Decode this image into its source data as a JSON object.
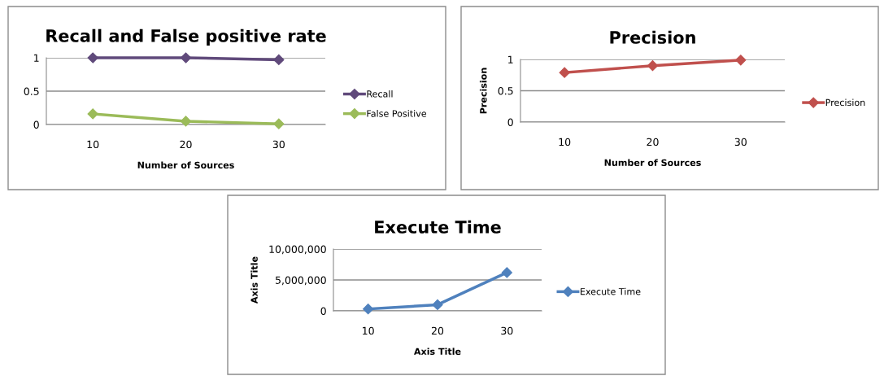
{
  "chart_data": [
    {
      "type": "line",
      "title": "Recall and False positive rate",
      "xlabel": "Number of Sources",
      "categories": [
        "10",
        "20",
        "30"
      ],
      "series": [
        {
          "name": "Recall",
          "color": "#604a7b",
          "values": [
            1,
            1,
            0.97
          ]
        },
        {
          "name": "False Positive",
          "color": "#9bbb59",
          "values": [
            0.16,
            0.05,
            0.01
          ]
        }
      ],
      "ylim": [
        0,
        1
      ],
      "yticks": [
        0,
        0.5,
        1
      ],
      "grid": "y",
      "legend": "right",
      "marker": "diamond"
    },
    {
      "type": "line",
      "title": "Precision",
      "xlabel": "Number of Sources",
      "ylabel": "Precision",
      "categories": [
        "10",
        "20",
        "30"
      ],
      "series": [
        {
          "name": "Precision",
          "color": "#c0504d",
          "values": [
            0.79,
            0.9,
            0.99
          ]
        }
      ],
      "ylim": [
        0,
        1
      ],
      "yticks": [
        0,
        0.5,
        1
      ],
      "grid": "y",
      "legend": "right",
      "marker": "diamond"
    },
    {
      "type": "line",
      "title": "Execute Time",
      "xlabel": "Axis Title",
      "ylabel": "Axis Title",
      "categories": [
        "10",
        "20",
        "30"
      ],
      "series": [
        {
          "name": "Execute Time",
          "color": "#4f81bd",
          "values": [
            300000,
            1000000,
            6200000
          ]
        }
      ],
      "ylim": [
        0,
        10000000
      ],
      "yticks": [
        0,
        {
          "value": 5000000,
          "label": "5,000,000"
        },
        {
          "value": 10000000,
          "label": "10,000,000"
        }
      ],
      "grid": "y",
      "legend": "right",
      "marker": "diamond"
    }
  ]
}
